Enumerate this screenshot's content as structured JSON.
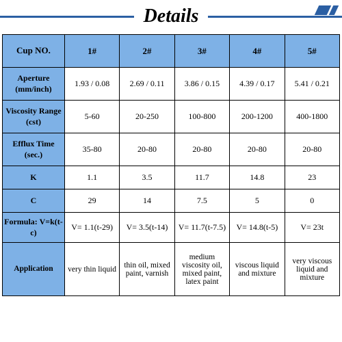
{
  "title": "Details",
  "colors": {
    "accent": "#2b5fa3",
    "header_bg": "#7eb1e6",
    "cell_bg": "#ffffff",
    "border": "#000000",
    "text": "#000000"
  },
  "table": {
    "corner_label": "Cup NO.",
    "column_headers": [
      "1#",
      "2#",
      "3#",
      "4#",
      "5#"
    ],
    "rows": [
      {
        "key": "aperture",
        "label": "Aperture (mm/inch)",
        "values": [
          "1.93 / 0.08",
          "2.69 / 0.11",
          "3.86 / 0.15",
          "4.39 / 0.17",
          "5.41 / 0.21"
        ]
      },
      {
        "key": "viscosity",
        "label": "Viscosity Range (cst)",
        "values": [
          "5-60",
          "20-250",
          "100-800",
          "200-1200",
          "400-1800"
        ]
      },
      {
        "key": "efflux",
        "label": "Efflux Time (sec.)",
        "values": [
          "35-80",
          "20-80",
          "20-80",
          "20-80",
          "20-80"
        ]
      },
      {
        "key": "k",
        "label": "K",
        "values": [
          "1.1",
          "3.5",
          "11.7",
          "14.8",
          "23"
        ]
      },
      {
        "key": "c",
        "label": "C",
        "values": [
          "29",
          "14",
          "7.5",
          "5",
          "0"
        ]
      },
      {
        "key": "formula",
        "label": "Formula: V=k(t-c)",
        "values": [
          "V= 1.1(t-29)",
          "V= 3.5(t-14)",
          "V= 11.7(t-7.5)",
          "V= 14.8(t-5)",
          "V= 23t"
        ]
      },
      {
        "key": "application",
        "label": "Application",
        "values": [
          "very thin liquid",
          "thin oil, mixed paint, varnish",
          "medium viscosity oil, mixed paint, latex paint",
          "viscous liquid and mixture",
          "very viscous liquid and mixture"
        ]
      }
    ]
  }
}
